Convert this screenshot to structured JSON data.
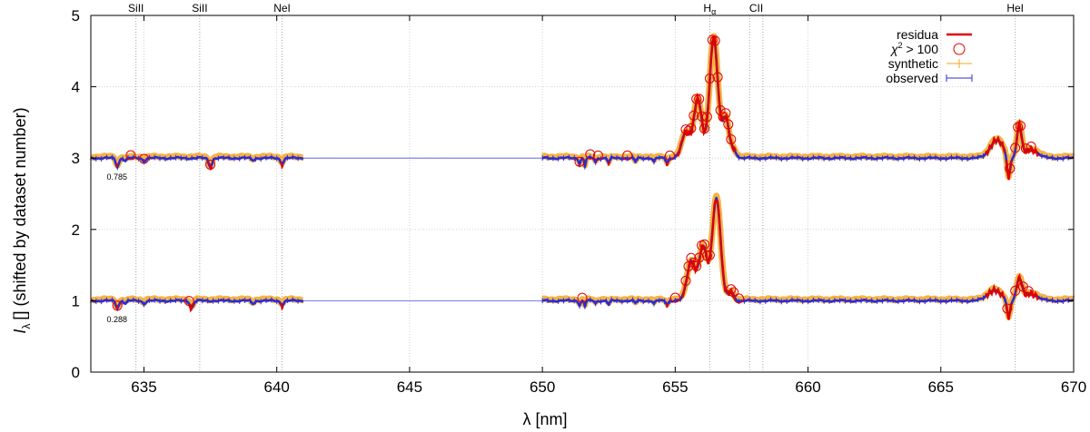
{
  "chart_data": {
    "type": "line",
    "title": "",
    "xlabel": "λ [nm]",
    "ylabel": "(shifted by dataset number)",
    "ylabel_symbol": "I",
    "ylabel_subscript": "λ",
    "ylabel_unit": "[]",
    "xlim": [
      633,
      670
    ],
    "ylim": [
      0,
      5
    ],
    "xticks": [
      635,
      640,
      645,
      650,
      655,
      660,
      665,
      670
    ],
    "yticks": [
      0,
      1,
      2,
      3,
      4,
      5
    ],
    "grid": true,
    "legend_position": "top-right",
    "spectral_lines": [
      {
        "label": "SiII",
        "wavelength": 634.7
      },
      {
        "label": "SiII",
        "wavelength": 637.1
      },
      {
        "label": "NeI",
        "wavelength": 640.2
      },
      {
        "label": "H",
        "sub": "α",
        "wavelength": 656.3
      },
      {
        "label": "CII",
        "wavelength": 657.8
      },
      {
        "label": "CII",
        "wavelength": 658.3
      },
      {
        "label": "HeI",
        "wavelength": 667.8
      }
    ],
    "dataset_labels": [
      {
        "text": "0.785",
        "x": 633.6,
        "y": 2.7
      },
      {
        "text": "0.288",
        "x": 633.6,
        "y": 0.7
      }
    ],
    "series": [
      {
        "name": "residua",
        "color": "#e00000",
        "style": "line"
      },
      {
        "name": "χ² > 100",
        "color": "#e00000",
        "style": "circle"
      },
      {
        "name": "synthetic",
        "color": "#f5a623",
        "style": "plus"
      },
      {
        "name": "observed",
        "color": "#2b2bd6",
        "style": "errorbar"
      }
    ],
    "datasets": [
      {
        "offset": 3,
        "ranges": [
          [
            633,
            641
          ],
          [
            650,
            670
          ]
        ],
        "lines": [
          {
            "x": 634.0,
            "d": -0.12,
            "w": 0.08
          },
          {
            "x": 634.3,
            "d": -0.04,
            "w": 0.06
          },
          {
            "x": 635.0,
            "d": -0.04,
            "w": 0.08
          },
          {
            "x": 637.5,
            "d": -0.12,
            "w": 0.09
          },
          {
            "x": 639.1,
            "d": -0.03,
            "w": 0.08
          },
          {
            "x": 640.2,
            "d": -0.08,
            "w": 0.08
          },
          {
            "x": 651.4,
            "d": -0.08,
            "w": 0.05
          },
          {
            "x": 651.6,
            "d": -0.12,
            "w": 0.04
          },
          {
            "x": 652.0,
            "d": -0.06,
            "w": 0.05
          },
          {
            "x": 652.5,
            "d": -0.08,
            "w": 0.05
          },
          {
            "x": 653.5,
            "d": -0.06,
            "w": 0.05
          },
          {
            "x": 654.2,
            "d": -0.06,
            "w": 0.05
          },
          {
            "x": 654.7,
            "d": -0.08,
            "w": 0.05
          }
        ],
        "bumps": [
          {
            "x": 655.4,
            "h": 0.35,
            "w": 0.22
          },
          {
            "x": 655.85,
            "h": 0.82,
            "w": 0.22
          },
          {
            "x": 656.45,
            "h": 1.7,
            "w": 0.22
          },
          {
            "x": 656.9,
            "h": 0.55,
            "w": 0.18
          },
          {
            "x": 657.2,
            "h": 0.1,
            "w": 0.15
          },
          {
            "x": 667.1,
            "h": 0.25,
            "w": 0.35
          },
          {
            "x": 667.55,
            "h": -0.32,
            "w": 0.08
          },
          {
            "x": 667.95,
            "h": 0.45,
            "w": 0.12
          },
          {
            "x": 668.4,
            "h": 0.12,
            "w": 0.35
          }
        ],
        "circles": [
          634.5,
          635.0,
          637.5,
          651.4,
          651.8,
          652.1,
          653.2,
          654.8,
          655.4,
          655.5,
          655.6,
          655.7,
          655.8,
          655.9,
          656.0,
          656.1,
          656.2,
          656.3,
          656.4,
          656.5,
          656.6,
          656.7,
          656.8,
          656.9,
          657.0,
          657.1,
          667.6,
          667.8,
          667.9,
          668.0,
          668.2,
          668.4
        ]
      },
      {
        "offset": 1,
        "ranges": [
          [
            633,
            641
          ],
          [
            650,
            670
          ]
        ],
        "lines": [
          {
            "x": 634.0,
            "d": -0.1,
            "w": 0.08
          },
          {
            "x": 634.3,
            "d": -0.04,
            "w": 0.06
          },
          {
            "x": 635.0,
            "d": -0.04,
            "w": 0.08
          },
          {
            "x": 636.8,
            "d": -0.1,
            "w": 0.09
          },
          {
            "x": 639.1,
            "d": -0.04,
            "w": 0.08
          },
          {
            "x": 640.2,
            "d": -0.06,
            "w": 0.08
          },
          {
            "x": 651.4,
            "d": -0.06,
            "w": 0.05
          },
          {
            "x": 651.6,
            "d": -0.08,
            "w": 0.04
          },
          {
            "x": 652.0,
            "d": -0.04,
            "w": 0.05
          },
          {
            "x": 652.5,
            "d": -0.06,
            "w": 0.05
          },
          {
            "x": 653.5,
            "d": -0.04,
            "w": 0.05
          },
          {
            "x": 654.2,
            "d": -0.05,
            "w": 0.05
          },
          {
            "x": 654.7,
            "d": -0.06,
            "w": 0.05
          }
        ],
        "bumps": [
          {
            "x": 655.6,
            "h": 0.55,
            "w": 0.22
          },
          {
            "x": 656.05,
            "h": 0.75,
            "w": 0.22
          },
          {
            "x": 656.55,
            "h": 1.45,
            "w": 0.22
          },
          {
            "x": 657.1,
            "h": 0.12,
            "w": 0.15
          },
          {
            "x": 667.0,
            "h": 0.15,
            "w": 0.35
          },
          {
            "x": 667.55,
            "h": -0.25,
            "w": 0.08
          },
          {
            "x": 667.95,
            "h": 0.3,
            "w": 0.14
          },
          {
            "x": 668.4,
            "h": 0.1,
            "w": 0.35
          }
        ],
        "circles": [
          634.0,
          636.7,
          651.5,
          655.0,
          655.4,
          655.5,
          655.6,
          655.7,
          655.8,
          655.9,
          656.0,
          656.1,
          656.2,
          656.3,
          657.1,
          657.2,
          657.4,
          667.5,
          667.8,
          668.1,
          668.3
        ]
      }
    ]
  }
}
